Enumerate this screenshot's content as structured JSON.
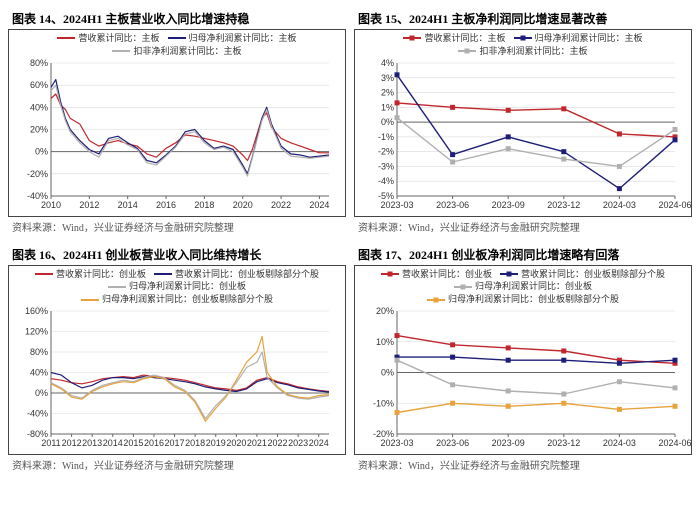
{
  "source_text": "资料来源：Wind，兴业证券经济与金融研究院整理",
  "colors": {
    "red": "#c0272d",
    "navy": "#1e1e78",
    "gray": "#b0b0b0",
    "orange": "#e8a33d",
    "axis": "#666666",
    "grid": "#d9d9d9",
    "border": "#444444",
    "bg": "#ffffff"
  },
  "chart14": {
    "title": "图表 14、2024H1 主板营业收入同比增速持稳",
    "type": "line",
    "legend": [
      {
        "label": "营收累计同比：主板",
        "color": "#c0272d",
        "marker": false
      },
      {
        "label": "归母净利润累计同比：主板",
        "color": "#1e1e78",
        "marker": false
      },
      {
        "label": "扣非净利润累计同比：主板",
        "color": "#b0b0b0",
        "marker": false
      }
    ],
    "x_labels": [
      "2010",
      "2012",
      "2014",
      "2016",
      "2018",
      "2020",
      "2022",
      "2024"
    ],
    "xlim": [
      2010,
      2024.5
    ],
    "ylim": [
      -40,
      80
    ],
    "ytick_step": 20,
    "y_suffix": "%",
    "series": [
      {
        "color": "#c0272d",
        "width": 1.2,
        "points": [
          [
            2010,
            48
          ],
          [
            2010.25,
            52
          ],
          [
            2010.5,
            42
          ],
          [
            2010.75,
            38
          ],
          [
            2011,
            30
          ],
          [
            2011.5,
            25
          ],
          [
            2012,
            10
          ],
          [
            2012.5,
            5
          ],
          [
            2013,
            8
          ],
          [
            2013.5,
            10
          ],
          [
            2014,
            7
          ],
          [
            2014.5,
            5
          ],
          [
            2015,
            -2
          ],
          [
            2015.5,
            -5
          ],
          [
            2016,
            3
          ],
          [
            2016.5,
            8
          ],
          [
            2017,
            15
          ],
          [
            2017.5,
            14
          ],
          [
            2018,
            12
          ],
          [
            2018.5,
            10
          ],
          [
            2019,
            8
          ],
          [
            2019.5,
            5
          ],
          [
            2020,
            -3
          ],
          [
            2020.25,
            -8
          ],
          [
            2020.5,
            2
          ],
          [
            2021,
            30
          ],
          [
            2021.25,
            35
          ],
          [
            2021.5,
            22
          ],
          [
            2022,
            12
          ],
          [
            2022.5,
            8
          ],
          [
            2023,
            5
          ],
          [
            2023.5,
            2
          ],
          [
            2024,
            -1
          ],
          [
            2024.5,
            -1
          ]
        ]
      },
      {
        "color": "#1e1e78",
        "width": 1.2,
        "points": [
          [
            2010,
            58
          ],
          [
            2010.25,
            65
          ],
          [
            2010.5,
            45
          ],
          [
            2010.75,
            30
          ],
          [
            2011,
            20
          ],
          [
            2011.5,
            10
          ],
          [
            2012,
            2
          ],
          [
            2012.5,
            -2
          ],
          [
            2013,
            12
          ],
          [
            2013.5,
            14
          ],
          [
            2014,
            8
          ],
          [
            2014.5,
            3
          ],
          [
            2015,
            -8
          ],
          [
            2015.5,
            -10
          ],
          [
            2016,
            -3
          ],
          [
            2016.5,
            5
          ],
          [
            2017,
            18
          ],
          [
            2017.5,
            20
          ],
          [
            2018,
            10
          ],
          [
            2018.5,
            3
          ],
          [
            2019,
            5
          ],
          [
            2019.5,
            2
          ],
          [
            2020,
            -12
          ],
          [
            2020.25,
            -20
          ],
          [
            2020.5,
            -5
          ],
          [
            2021,
            30
          ],
          [
            2021.25,
            40
          ],
          [
            2021.5,
            25
          ],
          [
            2022,
            5
          ],
          [
            2022.5,
            -2
          ],
          [
            2023,
            -3
          ],
          [
            2023.5,
            -5
          ],
          [
            2024,
            -4
          ],
          [
            2024.5,
            -3
          ]
        ]
      },
      {
        "color": "#b0b0b0",
        "width": 1.2,
        "points": [
          [
            2010,
            55
          ],
          [
            2010.25,
            60
          ],
          [
            2010.5,
            42
          ],
          [
            2010.75,
            28
          ],
          [
            2011,
            18
          ],
          [
            2011.5,
            8
          ],
          [
            2012,
            0
          ],
          [
            2012.5,
            -5
          ],
          [
            2013,
            10
          ],
          [
            2013.5,
            12
          ],
          [
            2014,
            6
          ],
          [
            2014.5,
            2
          ],
          [
            2015,
            -10
          ],
          [
            2015.5,
            -12
          ],
          [
            2016,
            -4
          ],
          [
            2016.5,
            4
          ],
          [
            2017,
            16
          ],
          [
            2017.5,
            18
          ],
          [
            2018,
            8
          ],
          [
            2018.5,
            2
          ],
          [
            2019,
            4
          ],
          [
            2019.5,
            0
          ],
          [
            2020,
            -14
          ],
          [
            2020.25,
            -22
          ],
          [
            2020.5,
            -6
          ],
          [
            2021,
            28
          ],
          [
            2021.25,
            38
          ],
          [
            2021.5,
            23
          ],
          [
            2022,
            3
          ],
          [
            2022.5,
            -4
          ],
          [
            2023,
            -5
          ],
          [
            2023.5,
            -6
          ],
          [
            2024,
            -5
          ],
          [
            2024.5,
            -4
          ]
        ]
      }
    ]
  },
  "chart15": {
    "title": "图表 15、2024H1 主板净利润同比增速显著改善",
    "type": "line",
    "legend": [
      {
        "label": "营收累计同比：主板",
        "color": "#c0272d",
        "marker": true
      },
      {
        "label": "归母净利润累计同比：主板",
        "color": "#1e1e78",
        "marker": true
      },
      {
        "label": "扣非净利润累计同比：主板",
        "color": "#b0b0b0",
        "marker": true
      }
    ],
    "x_labels": [
      "2023-03",
      "2023-06",
      "2023-09",
      "2023-12",
      "2024-03",
      "2024-06"
    ],
    "xlim": [
      0,
      5
    ],
    "ylim": [
      -5,
      4
    ],
    "ytick_step": 1,
    "y_suffix": "%",
    "series": [
      {
        "color": "#c0272d",
        "width": 1.4,
        "marker": true,
        "points": [
          [
            0,
            1.3
          ],
          [
            1,
            1.0
          ],
          [
            2,
            0.8
          ],
          [
            3,
            0.9
          ],
          [
            4,
            -0.8
          ],
          [
            5,
            -1.0
          ]
        ]
      },
      {
        "color": "#1e1e78",
        "width": 1.4,
        "marker": true,
        "points": [
          [
            0,
            3.2
          ],
          [
            1,
            -2.2
          ],
          [
            2,
            -1.0
          ],
          [
            3,
            -2.0
          ],
          [
            4,
            -4.5
          ],
          [
            5,
            -1.2
          ]
        ]
      },
      {
        "color": "#b0b0b0",
        "width": 1.4,
        "marker": true,
        "points": [
          [
            0,
            0.3
          ],
          [
            1,
            -2.7
          ],
          [
            2,
            -1.8
          ],
          [
            3,
            -2.5
          ],
          [
            4,
            -3.0
          ],
          [
            5,
            -0.5
          ]
        ]
      }
    ]
  },
  "chart16": {
    "title": "图表 16、2024H1 创业板营业收入同比维持增长",
    "type": "line",
    "legend": [
      {
        "label": "营收累计同比：创业板",
        "color": "#c0272d",
        "marker": false
      },
      {
        "label": "营收累计同比：创业板剔除部分个股",
        "color": "#1e1e78",
        "marker": false
      },
      {
        "label": "归母净利润累计同比：创业板",
        "color": "#b0b0b0",
        "marker": false
      },
      {
        "label": "归母净利润累计同比：创业板剔除部分个股",
        "color": "#e8a33d",
        "marker": false
      }
    ],
    "x_labels": [
      "2011",
      "2012",
      "2013",
      "2014",
      "2015",
      "2016",
      "2017",
      "2018",
      "2019",
      "2020",
      "2021",
      "2022",
      "2023",
      "2024"
    ],
    "xlim": [
      2011,
      2024.5
    ],
    "ylim": [
      -80,
      160
    ],
    "ytick_step": 40,
    "y_suffix": "%",
    "series": [
      {
        "color": "#c0272d",
        "width": 1.2,
        "points": [
          [
            2011,
            28
          ],
          [
            2011.5,
            25
          ],
          [
            2012,
            20
          ],
          [
            2012.5,
            18
          ],
          [
            2013,
            22
          ],
          [
            2013.5,
            28
          ],
          [
            2014,
            30
          ],
          [
            2014.5,
            32
          ],
          [
            2015,
            30
          ],
          [
            2015.5,
            35
          ],
          [
            2016,
            32
          ],
          [
            2016.5,
            30
          ],
          [
            2017,
            28
          ],
          [
            2017.5,
            25
          ],
          [
            2018,
            20
          ],
          [
            2018.5,
            15
          ],
          [
            2019,
            10
          ],
          [
            2019.5,
            8
          ],
          [
            2020,
            5
          ],
          [
            2020.5,
            10
          ],
          [
            2021,
            25
          ],
          [
            2021.5,
            30
          ],
          [
            2022,
            22
          ],
          [
            2022.5,
            18
          ],
          [
            2023,
            12
          ],
          [
            2023.5,
            8
          ],
          [
            2024,
            5
          ],
          [
            2024.5,
            3
          ]
        ]
      },
      {
        "color": "#1e1e78",
        "width": 1.2,
        "points": [
          [
            2011,
            40
          ],
          [
            2011.5,
            35
          ],
          [
            2012,
            20
          ],
          [
            2012.5,
            10
          ],
          [
            2013,
            15
          ],
          [
            2013.5,
            25
          ],
          [
            2014,
            30
          ],
          [
            2014.5,
            30
          ],
          [
            2015,
            28
          ],
          [
            2015.5,
            32
          ],
          [
            2016,
            30
          ],
          [
            2016.5,
            28
          ],
          [
            2017,
            25
          ],
          [
            2017.5,
            22
          ],
          [
            2018,
            18
          ],
          [
            2018.5,
            12
          ],
          [
            2019,
            8
          ],
          [
            2019.5,
            5
          ],
          [
            2020,
            3
          ],
          [
            2020.5,
            8
          ],
          [
            2021,
            22
          ],
          [
            2021.5,
            28
          ],
          [
            2022,
            20
          ],
          [
            2022.5,
            16
          ],
          [
            2023,
            10
          ],
          [
            2023.5,
            7
          ],
          [
            2024,
            4
          ],
          [
            2024.5,
            2
          ]
        ]
      },
      {
        "color": "#b0b0b0",
        "width": 1.2,
        "points": [
          [
            2011,
            20
          ],
          [
            2011.5,
            10
          ],
          [
            2012,
            -5
          ],
          [
            2012.5,
            -10
          ],
          [
            2013,
            5
          ],
          [
            2013.5,
            15
          ],
          [
            2014,
            20
          ],
          [
            2014.5,
            25
          ],
          [
            2015,
            22
          ],
          [
            2015.5,
            30
          ],
          [
            2016,
            35
          ],
          [
            2016.5,
            30
          ],
          [
            2017,
            15
          ],
          [
            2017.5,
            5
          ],
          [
            2018,
            -15
          ],
          [
            2018.5,
            -50
          ],
          [
            2019,
            -25
          ],
          [
            2019.5,
            -5
          ],
          [
            2020,
            20
          ],
          [
            2020.5,
            50
          ],
          [
            2021,
            60
          ],
          [
            2021.25,
            80
          ],
          [
            2021.5,
            30
          ],
          [
            2022,
            10
          ],
          [
            2022.5,
            -5
          ],
          [
            2023,
            -10
          ],
          [
            2023.5,
            -12
          ],
          [
            2024,
            -8
          ],
          [
            2024.5,
            -5
          ]
        ]
      },
      {
        "color": "#e8a33d",
        "width": 1.2,
        "points": [
          [
            2011,
            18
          ],
          [
            2011.5,
            8
          ],
          [
            2012,
            -8
          ],
          [
            2012.5,
            -12
          ],
          [
            2013,
            3
          ],
          [
            2013.5,
            12
          ],
          [
            2014,
            18
          ],
          [
            2014.5,
            22
          ],
          [
            2015,
            20
          ],
          [
            2015.5,
            28
          ],
          [
            2016,
            32
          ],
          [
            2016.5,
            28
          ],
          [
            2017,
            12
          ],
          [
            2017.5,
            3
          ],
          [
            2018,
            -18
          ],
          [
            2018.5,
            -55
          ],
          [
            2019,
            -30
          ],
          [
            2019.5,
            -8
          ],
          [
            2020,
            25
          ],
          [
            2020.5,
            60
          ],
          [
            2021,
            80
          ],
          [
            2021.25,
            110
          ],
          [
            2021.5,
            40
          ],
          [
            2022,
            12
          ],
          [
            2022.5,
            -3
          ],
          [
            2023,
            -8
          ],
          [
            2023.5,
            -10
          ],
          [
            2024,
            -5
          ],
          [
            2024.5,
            -3
          ]
        ]
      }
    ]
  },
  "chart17": {
    "title": "图表 17、2024H1 创业板净利润同比增速略有回落",
    "type": "line",
    "legend": [
      {
        "label": "营收累计同比：创业板",
        "color": "#c0272d",
        "marker": true
      },
      {
        "label": "营收累计同比：创业板剔除部分个股",
        "color": "#1e1e78",
        "marker": true
      },
      {
        "label": "归母净利润累计同比：创业板",
        "color": "#b0b0b0",
        "marker": true
      },
      {
        "label": "归母净利润累计同比：创业板剔除部分个股",
        "color": "#e8a33d",
        "marker": true
      }
    ],
    "x_labels": [
      "2023-03",
      "2023-06",
      "2023-09",
      "2023-12",
      "2024-03",
      "2024-06"
    ],
    "xlim": [
      0,
      5
    ],
    "ylim": [
      -20,
      20
    ],
    "ytick_step": 10,
    "y_suffix": "%",
    "series": [
      {
        "color": "#c0272d",
        "width": 1.4,
        "marker": true,
        "points": [
          [
            0,
            12
          ],
          [
            1,
            9
          ],
          [
            2,
            8
          ],
          [
            3,
            7
          ],
          [
            4,
            4
          ],
          [
            5,
            3
          ]
        ]
      },
      {
        "color": "#1e1e78",
        "width": 1.4,
        "marker": true,
        "points": [
          [
            0,
            5
          ],
          [
            1,
            5
          ],
          [
            2,
            4
          ],
          [
            3,
            4
          ],
          [
            4,
            3
          ],
          [
            5,
            4
          ]
        ]
      },
      {
        "color": "#b0b0b0",
        "width": 1.4,
        "marker": true,
        "points": [
          [
            0,
            4
          ],
          [
            1,
            -4
          ],
          [
            2,
            -6
          ],
          [
            3,
            -7
          ],
          [
            4,
            -3
          ],
          [
            5,
            -5
          ]
        ]
      },
      {
        "color": "#e8a33d",
        "width": 1.4,
        "marker": true,
        "points": [
          [
            0,
            -13
          ],
          [
            1,
            -10
          ],
          [
            2,
            -11
          ],
          [
            3,
            -10
          ],
          [
            4,
            -12
          ],
          [
            5,
            -11
          ]
        ]
      }
    ]
  }
}
